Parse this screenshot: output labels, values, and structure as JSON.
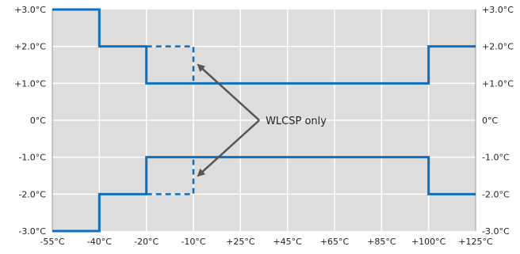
{
  "chart_data": {
    "type": "line",
    "title": "",
    "xlabel": "",
    "ylabel": "",
    "x_ticks": [
      "-55°C",
      "-40°C",
      "-20°C",
      "-10°C",
      "+25°C",
      "+45°C",
      "+65°C",
      "+85°C",
      "+100°C",
      "+125°C"
    ],
    "y_ticks": [
      "+3.0°C",
      "+2.0°C",
      "+1.0°C",
      "0°C",
      "-1.0°C",
      "-2.0°C",
      "-3.0°C"
    ],
    "ylim": [
      -3.0,
      3.0
    ],
    "grid": true,
    "series": [
      {
        "style": "solid",
        "points": [
          [
            0,
            3.0
          ],
          [
            1,
            3.0
          ],
          [
            1,
            2.0
          ],
          [
            2,
            2.0
          ],
          [
            2,
            1.0
          ],
          [
            8,
            1.0
          ],
          [
            8,
            2.0
          ],
          [
            9,
            2.0
          ]
        ]
      },
      {
        "style": "solid",
        "points": [
          [
            0,
            -3.0
          ],
          [
            1,
            -3.0
          ],
          [
            1,
            -2.0
          ],
          [
            2,
            -2.0
          ],
          [
            2,
            -1.0
          ],
          [
            8,
            -1.0
          ],
          [
            8,
            -2.0
          ],
          [
            9,
            -2.0
          ]
        ]
      },
      {
        "style": "dashed",
        "points": [
          [
            2,
            2.0
          ],
          [
            3,
            2.0
          ],
          [
            3,
            1.0
          ]
        ]
      },
      {
        "style": "dashed",
        "points": [
          [
            2,
            -2.0
          ],
          [
            3,
            -2.0
          ],
          [
            3,
            -1.0
          ]
        ]
      }
    ],
    "annotation": {
      "text": "WLCSP only",
      "points_to": [
        [
          3.1,
          1.5
        ],
        [
          3.1,
          -1.5
        ]
      ]
    },
    "colors": {
      "line": "#0f6fbd",
      "plot_bg": "#dddddd",
      "grid": "#ffffff",
      "arrow": "#555555"
    }
  }
}
